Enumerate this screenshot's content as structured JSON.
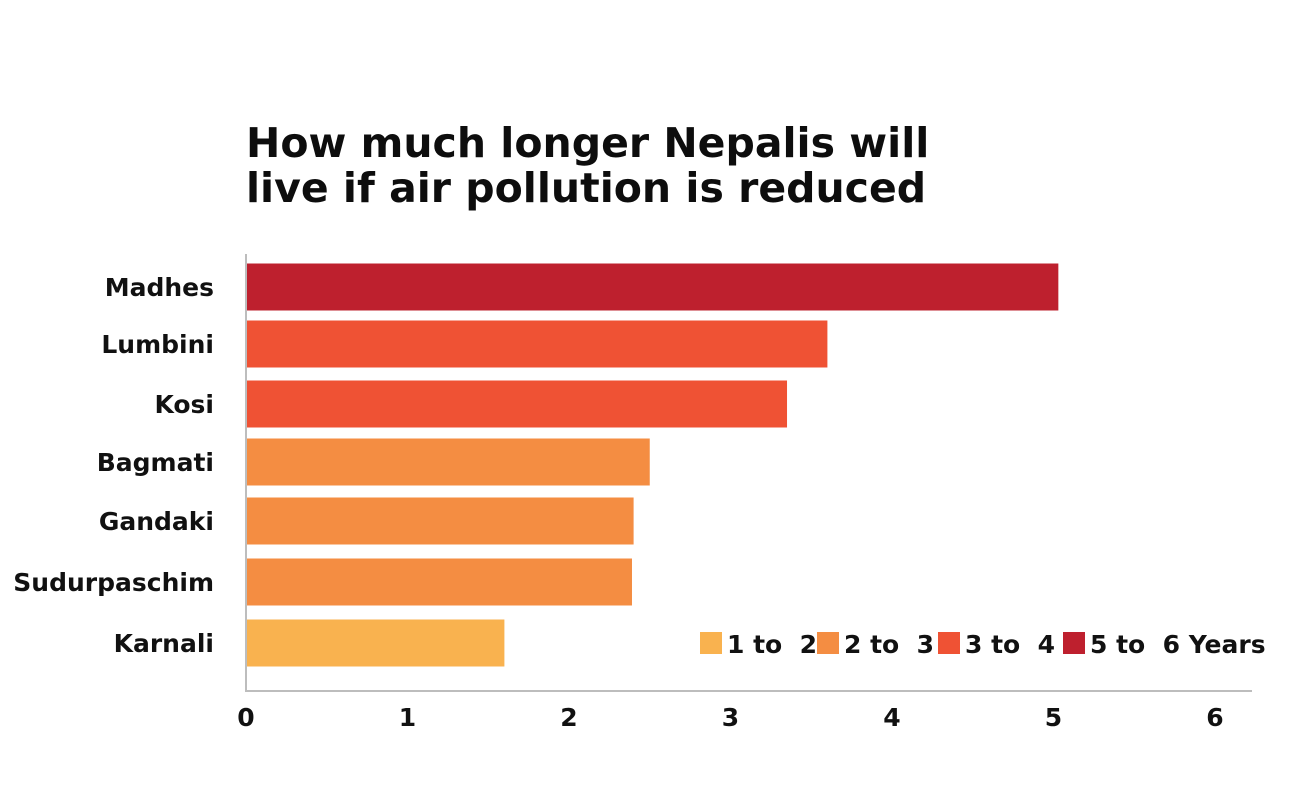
{
  "chart_data": {
    "type": "bar",
    "orientation": "horizontal",
    "title": "How much longer Nepalis will live if air pollution is reduced",
    "title_lines": [
      "How much longer Nepalis will",
      "live if air pollution is reduced"
    ],
    "categories": [
      "Madhes",
      "Lumbini",
      "Kosi",
      "Bagmati",
      "Gandaki",
      "Sudurpaschim",
      "Karnali"
    ],
    "values": [
      5.03,
      3.6,
      3.35,
      2.5,
      2.4,
      2.39,
      1.6
    ],
    "bar_groups": [
      "5 to  6 Years",
      "3 to  4",
      "3 to  4",
      "2 to  3",
      "2 to  3",
      "2 to  3",
      "1 to  2"
    ],
    "xlim": [
      0,
      6
    ],
    "x_ticks": [
      "0",
      "1",
      "2",
      "3",
      "4",
      "5",
      "6"
    ],
    "xlabel": "",
    "ylabel": "",
    "grid": false,
    "legend_position": "bottom-right",
    "legend": [
      {
        "label": "1 to  2",
        "color": "#f9b24f"
      },
      {
        "label": "2 to  3",
        "color": "#f48d42"
      },
      {
        "label": "3 to  4",
        "color": "#ef5234"
      },
      {
        "label": "5 to  6 Years",
        "color": "#be202e"
      }
    ],
    "axis_color": "#bdbdbd"
  }
}
